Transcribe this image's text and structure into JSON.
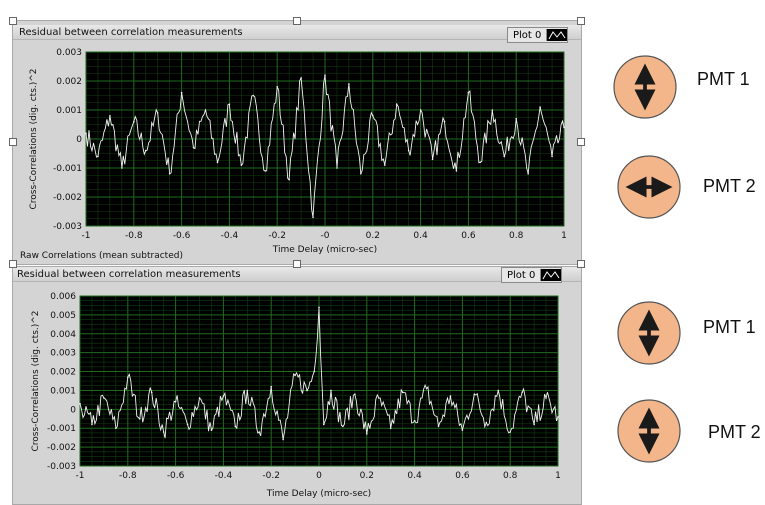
{
  "colors": {
    "plot_bg": "#000000",
    "grid": "#1f6b1f",
    "trace": "#f2f2f2",
    "circle_fill": "#f3b58a",
    "arrow": "#1a1a1a"
  },
  "icons": [
    "up-down-arrow-icon",
    "left-right-arrow-icon",
    "up-down-arrow-icon",
    "up-down-arrow-icon"
  ],
  "chart_data": [
    {
      "type": "line",
      "title": "Residual between correlation measurements",
      "legend": "Plot 0",
      "xlabel": "Time Delay (micro-sec)",
      "ylabel": "Cross-Correlations (dig. cts.)^2",
      "footer": "Raw Correlations (mean subtracted)",
      "xlim": [
        -1,
        1
      ],
      "ylim": [
        -0.003,
        0.003
      ],
      "xticks": [
        "-1",
        "-0.8",
        "-0.6",
        "-0.4",
        "-0.2",
        "-0",
        "0.2",
        "0.4",
        "0.6",
        "0.8",
        "1"
      ],
      "yticks": [
        "0.003",
        "0.002",
        "0.001",
        "0",
        "-0.001",
        "-0.002",
        "-0.003"
      ],
      "series": [
        {
          "x": [
            -1.0,
            -0.95,
            -0.9,
            -0.85,
            -0.8,
            -0.75,
            -0.7,
            -0.65,
            -0.6,
            -0.55,
            -0.5,
            -0.45,
            -0.4,
            -0.35,
            -0.3,
            -0.25,
            -0.2,
            -0.15,
            -0.1,
            -0.05,
            0.0,
            0.05,
            0.1,
            0.15,
            0.2,
            0.25,
            0.3,
            0.35,
            0.4,
            0.45,
            0.5,
            0.55,
            0.6,
            0.65,
            0.7,
            0.75,
            0.8,
            0.85,
            0.9,
            0.95,
            1.0
          ],
          "y": [
            0.0002,
            -0.0006,
            0.0008,
            -0.001,
            0.0006,
            -0.0004,
            0.0009,
            -0.0012,
            0.0016,
            -0.0003,
            0.001,
            -0.0008,
            0.0012,
            -0.0009,
            0.0015,
            -0.0011,
            0.0018,
            -0.0014,
            0.0021,
            -0.0027,
            0.0022,
            -0.001,
            0.0019,
            -0.0012,
            0.0008,
            -0.0009,
            0.0012,
            -0.0004,
            0.001,
            -0.0007,
            0.0006,
            -0.0011,
            0.0016,
            -0.0008,
            0.001,
            -0.0006,
            0.0007,
            -0.0012,
            0.0011,
            -0.0006,
            0.0004
          ]
        }
      ]
    },
    {
      "type": "line",
      "title": "Residual between correlation measurements",
      "legend": "Plot 0",
      "xlabel": "Time Delay (micro-sec)",
      "ylabel": "Cross-Correlations (dig. cts.)^2",
      "xlim": [
        -1,
        1
      ],
      "ylim": [
        -0.003,
        0.006
      ],
      "xticks": [
        "-1",
        "-0.8",
        "-0.6",
        "-0.4",
        "-0.2",
        "0",
        "0.2",
        "0.4",
        "0.6",
        "0.8",
        "1"
      ],
      "yticks": [
        "0.006",
        "0.005",
        "0.004",
        "0.003",
        "0.002",
        "0.001",
        "0",
        "-0.001",
        "-0.002",
        "-0.003"
      ],
      "series": [
        {
          "x": [
            -1.0,
            -0.95,
            -0.9,
            -0.85,
            -0.8,
            -0.75,
            -0.7,
            -0.65,
            -0.6,
            -0.55,
            -0.5,
            -0.45,
            -0.4,
            -0.35,
            -0.3,
            -0.25,
            -0.2,
            -0.15,
            -0.1,
            -0.05,
            -0.02,
            0.0,
            0.02,
            0.05,
            0.1,
            0.15,
            0.2,
            0.25,
            0.3,
            0.35,
            0.4,
            0.45,
            0.5,
            0.55,
            0.6,
            0.65,
            0.7,
            0.75,
            0.8,
            0.85,
            0.9,
            0.95,
            1.0
          ],
          "y": [
            0.0003,
            -0.0008,
            0.0006,
            -0.001,
            0.0017,
            -0.0005,
            0.0009,
            -0.0012,
            0.0004,
            -0.0008,
            0.0006,
            -0.0011,
            0.0007,
            -0.0009,
            0.001,
            -0.0012,
            0.0012,
            -0.0016,
            0.0018,
            0.001,
            0.002,
            0.0054,
            -0.0008,
            0.001,
            -0.0009,
            0.0008,
            -0.0013,
            0.0006,
            -0.001,
            0.0009,
            -0.0006,
            0.0011,
            -0.0009,
            0.0007,
            -0.0011,
            0.0008,
            -0.0007,
            0.001,
            -0.0012,
            0.0009,
            -0.0008,
            0.0006,
            -0.0004
          ]
        }
      ]
    }
  ],
  "labels": [
    {
      "text": "PMT 1"
    },
    {
      "text": "PMT 2"
    },
    {
      "text": "PMT 1"
    },
    {
      "text": "PMT 2"
    }
  ]
}
